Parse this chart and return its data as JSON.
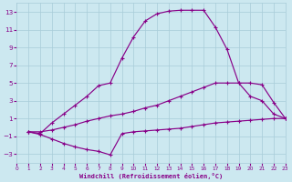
{
  "bg_color": "#cce8f0",
  "line_color": "#880088",
  "grid_color": "#a8ccd8",
  "xlabel": "Windchill (Refroidissement éolien,°C)",
  "xlim": [
    0,
    23
  ],
  "ylim": [
    -4,
    14
  ],
  "yticks": [
    -3,
    -1,
    1,
    3,
    5,
    7,
    9,
    11,
    13
  ],
  "xticks": [
    0,
    1,
    2,
    3,
    4,
    5,
    6,
    7,
    8,
    9,
    10,
    11,
    12,
    13,
    14,
    15,
    16,
    17,
    18,
    19,
    20,
    21,
    22,
    23
  ],
  "line1_x": [
    1,
    2,
    3,
    4,
    5,
    6,
    7,
    8,
    9,
    10,
    11,
    12,
    13,
    14,
    15,
    16,
    17,
    18,
    19,
    20,
    21,
    22,
    23
  ],
  "line1_y": [
    -0.5,
    -0.7,
    0.5,
    1.5,
    2.5,
    3.5,
    4.7,
    5.0,
    7.8,
    10.2,
    12.0,
    12.8,
    13.1,
    13.2,
    13.2,
    13.2,
    11.3,
    8.8,
    5.0,
    3.5,
    3.0,
    1.5,
    1.0
  ],
  "line2_x": [
    1,
    2,
    3,
    4,
    5,
    6,
    7,
    8,
    9,
    10,
    11,
    12,
    13,
    14,
    15,
    16,
    17,
    18,
    19,
    20,
    21,
    22,
    23
  ],
  "line2_y": [
    -0.5,
    -0.5,
    -0.3,
    0.0,
    0.3,
    0.7,
    1.0,
    1.3,
    1.5,
    1.8,
    2.2,
    2.5,
    3.0,
    3.5,
    4.0,
    4.5,
    5.0,
    5.0,
    5.0,
    5.0,
    4.8,
    2.8,
    1.0
  ],
  "line3_x": [
    1,
    2,
    3,
    4,
    5,
    6,
    7,
    8,
    9,
    10,
    11,
    12,
    13,
    14,
    15,
    16,
    17,
    18,
    19,
    20,
    21,
    22,
    23
  ],
  "line3_y": [
    -0.5,
    -0.8,
    -1.3,
    -1.8,
    -2.2,
    -2.5,
    -2.7,
    -3.1,
    -0.7,
    -0.5,
    -0.4,
    -0.3,
    -0.2,
    -0.1,
    0.1,
    0.3,
    0.5,
    0.6,
    0.7,
    0.8,
    0.9,
    1.0,
    1.0
  ]
}
